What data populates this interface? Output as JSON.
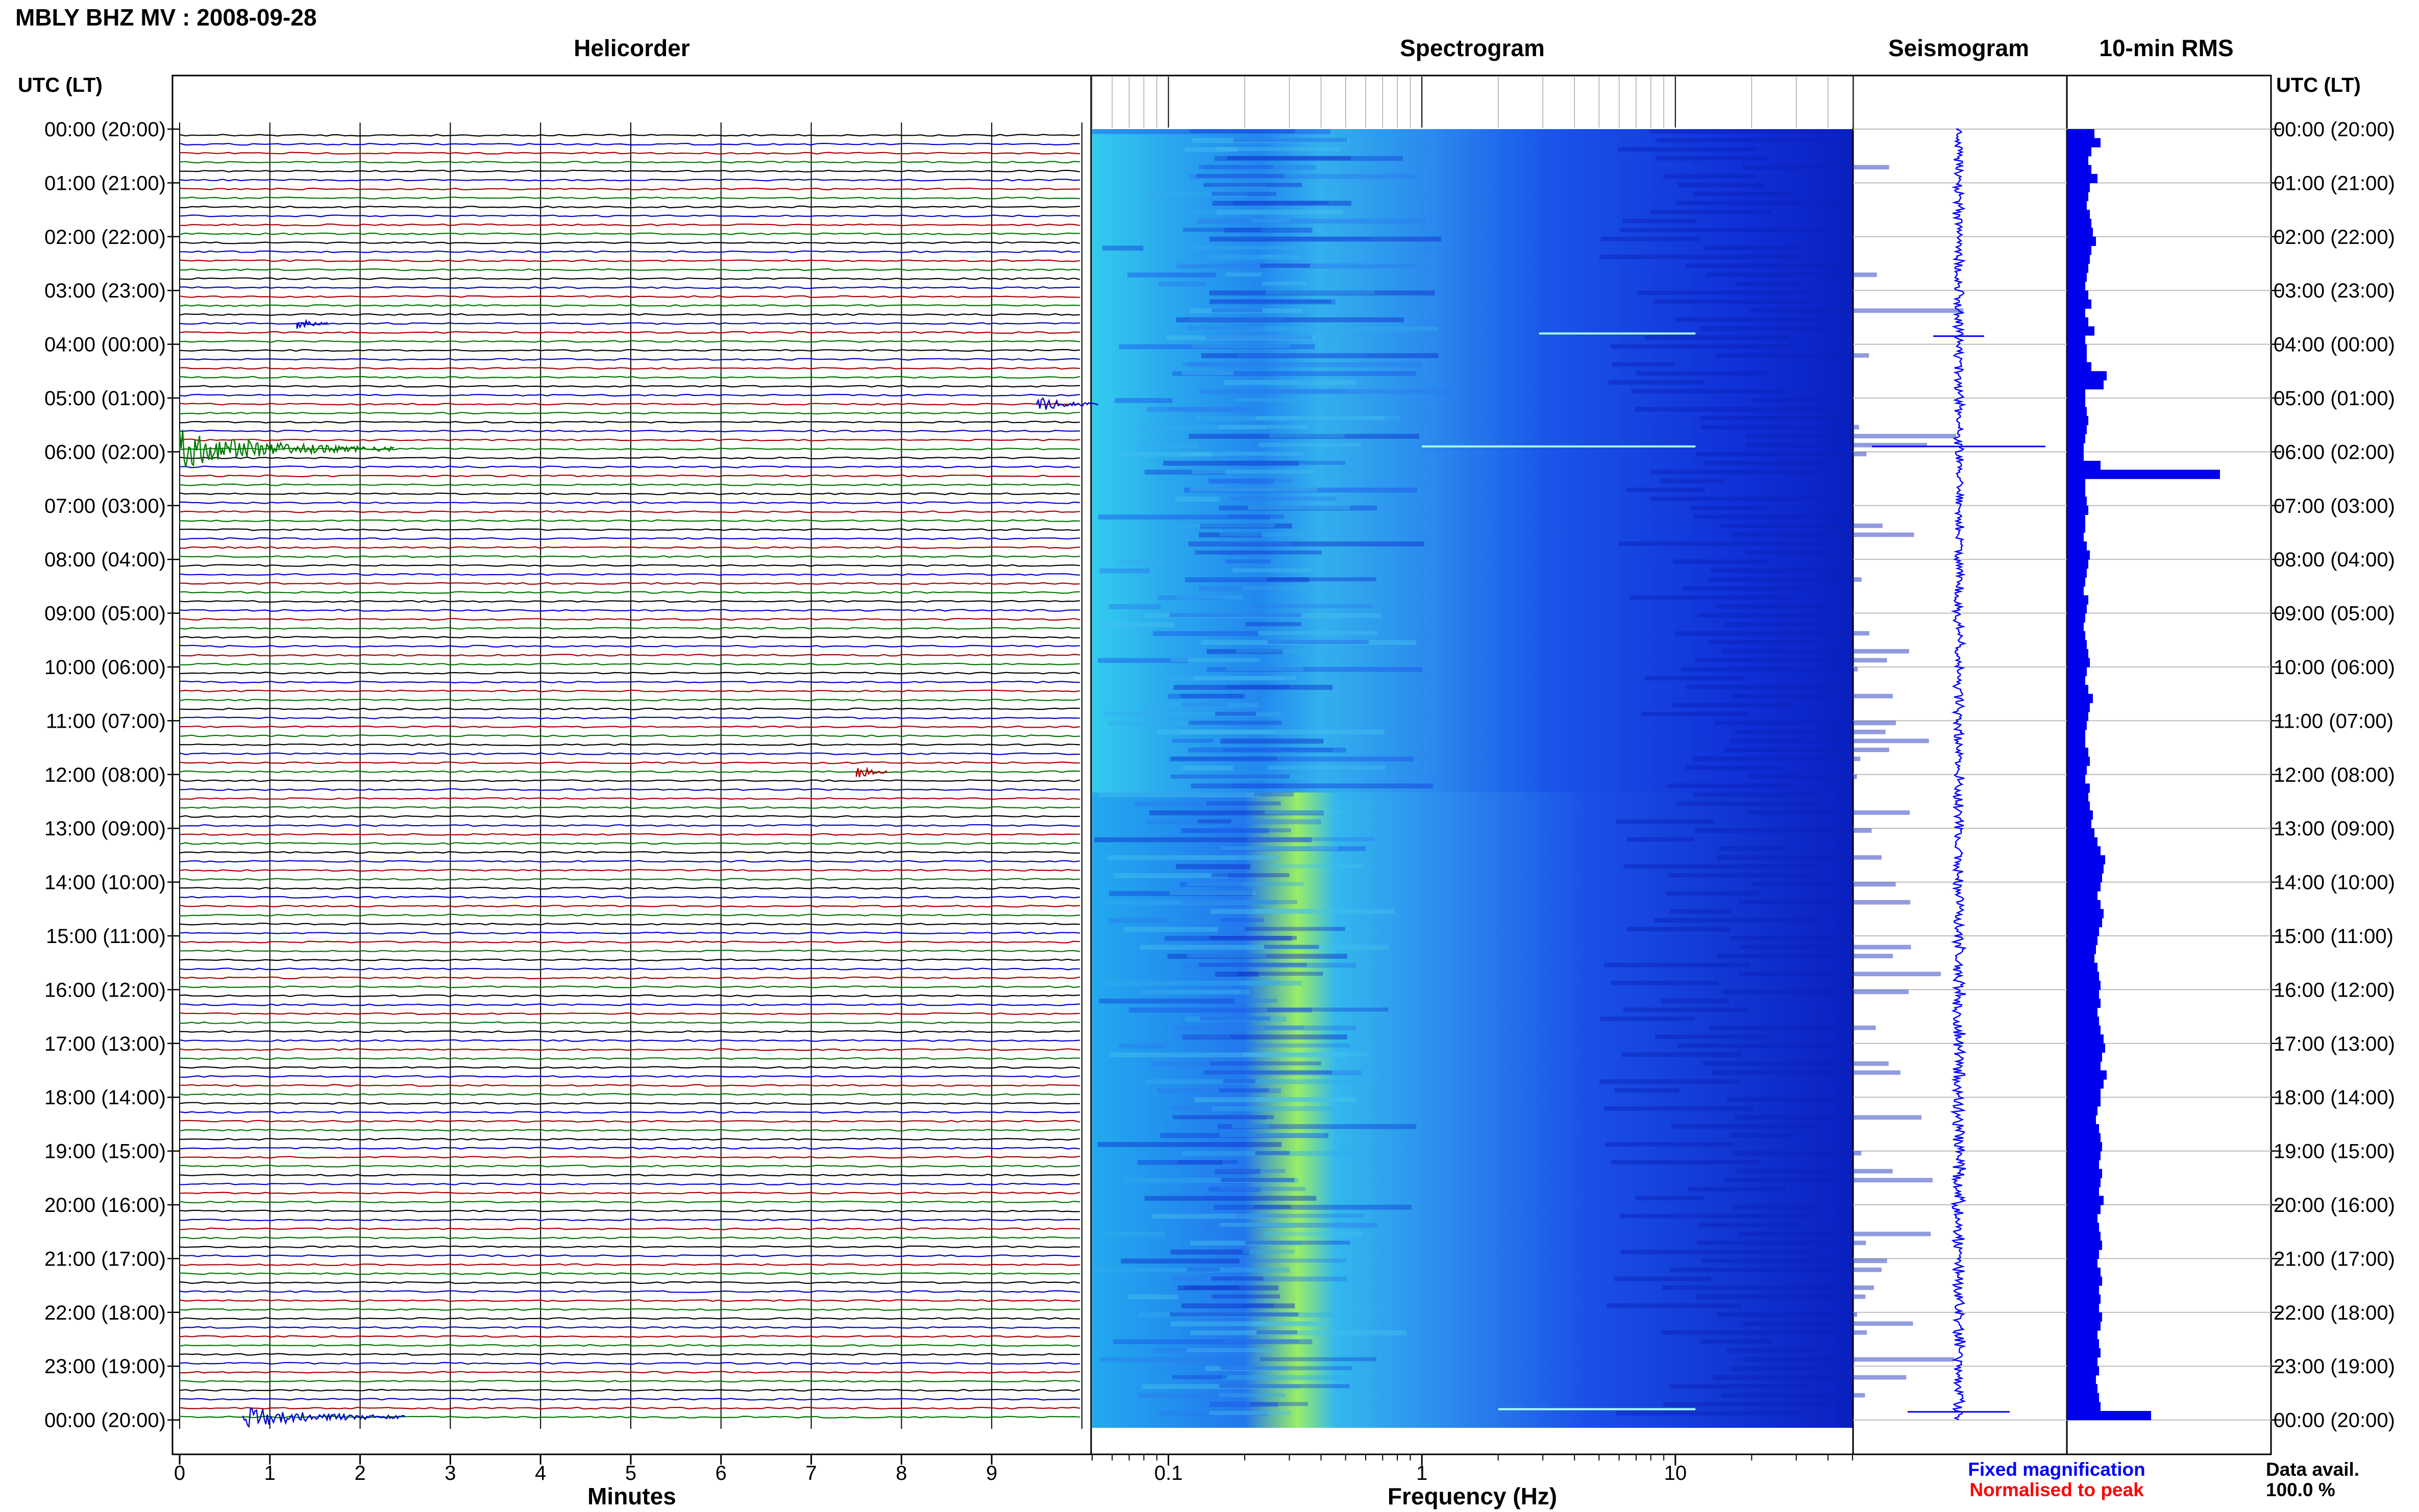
{
  "header": {
    "station_title": "MBLY BHZ MV : 2008-09-28"
  },
  "panels": {
    "helicorder": "Helicorder",
    "spectrogram": "Spectrogram",
    "seismogram": "Seismogram",
    "rms": "10-min RMS"
  },
  "axis": {
    "utc_header_left": "UTC (LT)",
    "utc_header_right": "UTC (LT)",
    "minutes_label": "Minutes",
    "frequency_label": "Frequency (Hz)",
    "minute_ticks": [
      "0",
      "1",
      "2",
      "3",
      "4",
      "5",
      "6",
      "7",
      "8",
      "9"
    ],
    "frequency_ticks": [
      "0.1",
      "1",
      "10"
    ],
    "time_labels": [
      "00:00 (20:00)",
      "01:00 (21:00)",
      "02:00 (22:00)",
      "03:00 (23:00)",
      "04:00 (00:00)",
      "05:00 (01:00)",
      "06:00 (02:00)",
      "07:00 (03:00)",
      "08:00 (04:00)",
      "09:00 (05:00)",
      "10:00 (06:00)",
      "11:00 (07:00)",
      "12:00 (08:00)",
      "13:00 (09:00)",
      "14:00 (10:00)",
      "15:00 (11:00)",
      "16:00 (12:00)",
      "17:00 (13:00)",
      "18:00 (14:00)",
      "19:00 (15:00)",
      "20:00 (16:00)",
      "21:00 (17:00)",
      "22:00 (18:00)",
      "23:00 (19:00)",
      "00:00 (20:00)"
    ]
  },
  "legend": {
    "fixed_magnification": "Fixed magnification",
    "normalised_to_peak": "Normalised to peak",
    "data_avail_label": "Data avail.",
    "data_avail_value": "100.0 %"
  },
  "colors": {
    "fixed": "#0000ff",
    "normalised": "#ff0000",
    "trace_cycle": [
      "#000000",
      "#0000cc",
      "#aa0000",
      "#007700"
    ],
    "rms_bar": "#0000ee",
    "seismogram": "#0000ff"
  },
  "chart_data": {
    "type": "helicorder",
    "title": "MBLY BHZ MV : 2008-09-28",
    "helicorder": {
      "xlabel": "Minutes",
      "xlim": [
        0,
        10
      ],
      "lines_per_hour": 6,
      "hours": 24,
      "events": [
        {
          "hour": 3,
          "line": 3,
          "minute": 1.3,
          "color": "#0000cc"
        },
        {
          "hour": 5,
          "line": 0,
          "minute": 9.5,
          "color": "#0000cc"
        },
        {
          "hour": 5,
          "line": 5,
          "minute": 0.0,
          "color": "#007700"
        },
        {
          "hour": 11,
          "line": 5,
          "minute": 7.5,
          "color": "#aa0000"
        },
        {
          "hour": 23,
          "line": 5,
          "minute": 0.7,
          "color": "#0000cc"
        }
      ]
    },
    "spectrogram": {
      "xlabel": "Frequency (Hz)",
      "xscale": "log",
      "xlim": [
        0.05,
        50
      ]
    },
    "rms": {
      "values": [
        0.18,
        0.22,
        0.16,
        0.14,
        0.16,
        0.2,
        0.15,
        0.14,
        0.13,
        0.15,
        0.16,
        0.17,
        0.19,
        0.16,
        0.15,
        0.14,
        0.13,
        0.12,
        0.14,
        0.16,
        0.12,
        0.14,
        0.18,
        0.12,
        0.13,
        0.13,
        0.16,
        0.26,
        0.24,
        0.12,
        0.12,
        0.13,
        0.14,
        0.13,
        0.12,
        0.11,
        0.11,
        0.22,
        1.0,
        0.12,
        0.12,
        0.13,
        0.14,
        0.12,
        0.12,
        0.11,
        0.13,
        0.15,
        0.14,
        0.13,
        0.12,
        0.11,
        0.14,
        0.13,
        0.12,
        0.11,
        0.12,
        0.13,
        0.14,
        0.15,
        0.13,
        0.12,
        0.14,
        0.17,
        0.15,
        0.14,
        0.13,
        0.12,
        0.12,
        0.14,
        0.15,
        0.13,
        0.12,
        0.15,
        0.14,
        0.15,
        0.17,
        0.16,
        0.18,
        0.2,
        0.22,
        0.25,
        0.24,
        0.23,
        0.22,
        0.2,
        0.22,
        0.24,
        0.23,
        0.21,
        0.2,
        0.19,
        0.18,
        0.2,
        0.21,
        0.22,
        0.21,
        0.22,
        0.2,
        0.21,
        0.22,
        0.24,
        0.25,
        0.23,
        0.22,
        0.26,
        0.24,
        0.22,
        0.22,
        0.2,
        0.19,
        0.21,
        0.22,
        0.23,
        0.22,
        0.21,
        0.23,
        0.22,
        0.21,
        0.24,
        0.22,
        0.2,
        0.21,
        0.22,
        0.23,
        0.21,
        0.2,
        0.22,
        0.23,
        0.21,
        0.22,
        0.21,
        0.23,
        0.22,
        0.2,
        0.21,
        0.22,
        0.2,
        0.21,
        0.19,
        0.2,
        0.21,
        0.22,
        0.55
      ],
      "peak_hour_index": 38
    }
  }
}
